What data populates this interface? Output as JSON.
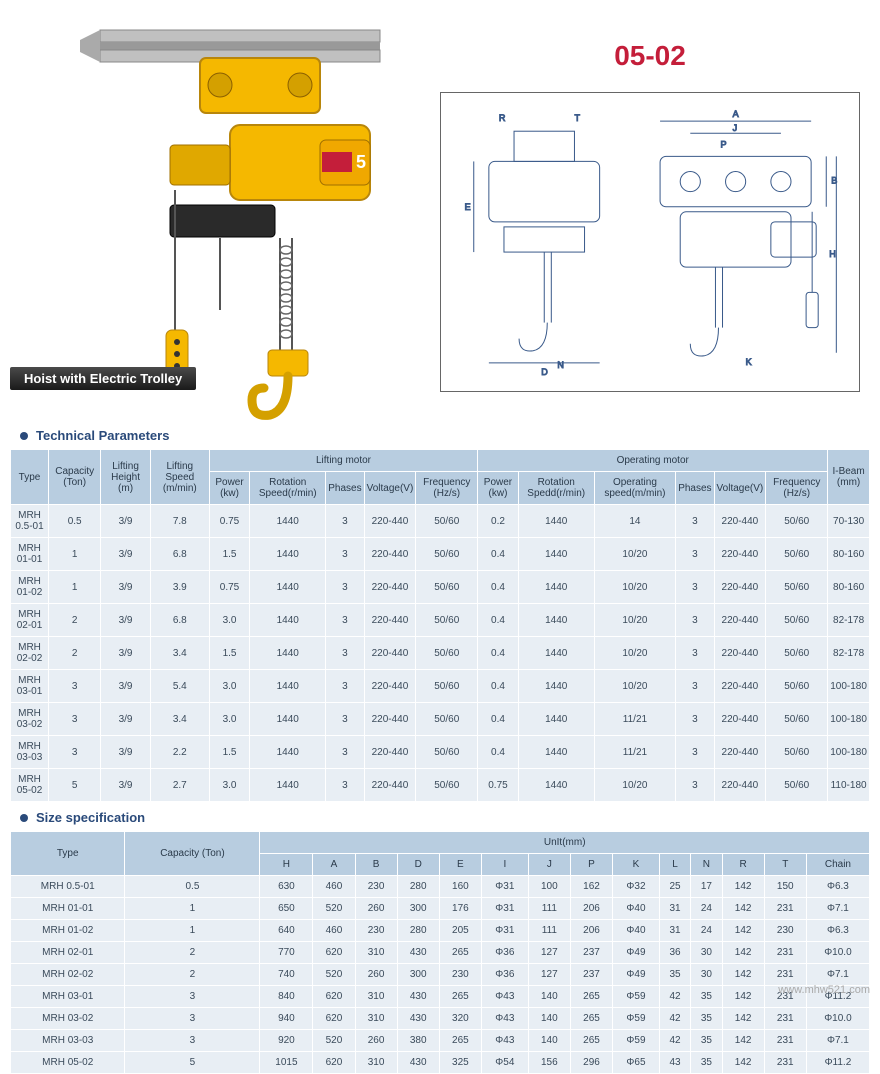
{
  "product": {
    "code": "05-02",
    "label": "Hoist with Electric Trolley"
  },
  "sections": {
    "tech": "Technical Parameters",
    "size": "Size specification"
  },
  "colors": {
    "header_bg": "#b8cde0",
    "cell_bg": "#e8eef4",
    "accent": "#2a4a7a",
    "code_color": "#c41e3a"
  },
  "tech_table": {
    "group_headers": [
      "Type",
      "Capacity (Ton)",
      "Lifting Height (m)",
      "Lifting Speed (m/min)",
      "Lifting motor",
      "Operating motor",
      "I-Beam (mm)"
    ],
    "sub_headers_lift": [
      "Power (kw)",
      "Rotation Speed(r/min)",
      "Phases",
      "Voltage(V)",
      "Frequency (Hz/s)"
    ],
    "sub_headers_op": [
      "Power (kw)",
      "Rotation Spedd(r/min)",
      "Operating speed(m/min)",
      "Phases",
      "Voltage(V)",
      "Frequency (Hz/s)"
    ],
    "rows": [
      [
        "MRH 0.5-01",
        "0.5",
        "3/9",
        "7.8",
        "0.75",
        "1440",
        "3",
        "220-440",
        "50/60",
        "0.2",
        "1440",
        "14",
        "3",
        "220-440",
        "50/60",
        "70-130"
      ],
      [
        "MRH 01-01",
        "1",
        "3/9",
        "6.8",
        "1.5",
        "1440",
        "3",
        "220-440",
        "50/60",
        "0.4",
        "1440",
        "10/20",
        "3",
        "220-440",
        "50/60",
        "80-160"
      ],
      [
        "MRH 01-02",
        "1",
        "3/9",
        "3.9",
        "0.75",
        "1440",
        "3",
        "220-440",
        "50/60",
        "0.4",
        "1440",
        "10/20",
        "3",
        "220-440",
        "50/60",
        "80-160"
      ],
      [
        "MRH 02-01",
        "2",
        "3/9",
        "6.8",
        "3.0",
        "1440",
        "3",
        "220-440",
        "50/60",
        "0.4",
        "1440",
        "10/20",
        "3",
        "220-440",
        "50/60",
        "82-178"
      ],
      [
        "MRH 02-02",
        "2",
        "3/9",
        "3.4",
        "1.5",
        "1440",
        "3",
        "220-440",
        "50/60",
        "0.4",
        "1440",
        "10/20",
        "3",
        "220-440",
        "50/60",
        "82-178"
      ],
      [
        "MRH 03-01",
        "3",
        "3/9",
        "5.4",
        "3.0",
        "1440",
        "3",
        "220-440",
        "50/60",
        "0.4",
        "1440",
        "10/20",
        "3",
        "220-440",
        "50/60",
        "100-180"
      ],
      [
        "MRH 03-02",
        "3",
        "3/9",
        "3.4",
        "3.0",
        "1440",
        "3",
        "220-440",
        "50/60",
        "0.4",
        "1440",
        "11/21",
        "3",
        "220-440",
        "50/60",
        "100-180"
      ],
      [
        "MRH 03-03",
        "3",
        "3/9",
        "2.2",
        "1.5",
        "1440",
        "3",
        "220-440",
        "50/60",
        "0.4",
        "1440",
        "11/21",
        "3",
        "220-440",
        "50/60",
        "100-180"
      ],
      [
        "MRH 05-02",
        "5",
        "3/9",
        "2.7",
        "3.0",
        "1440",
        "3",
        "220-440",
        "50/60",
        "0.75",
        "1440",
        "10/20",
        "3",
        "220-440",
        "50/60",
        "110-180"
      ]
    ]
  },
  "size_table": {
    "group_headers": [
      "Type",
      "Capacity (Ton)",
      "UnIt(mm)"
    ],
    "sub_headers": [
      "H",
      "A",
      "B",
      "D",
      "E",
      "I",
      "J",
      "P",
      "K",
      "L",
      "N",
      "R",
      "T",
      "Chain"
    ],
    "rows": [
      [
        "MRH 0.5-01",
        "0.5",
        "630",
        "460",
        "230",
        "280",
        "160",
        "Φ31",
        "100",
        "162",
        "Φ32",
        "25",
        "17",
        "142",
        "150",
        "Φ6.3"
      ],
      [
        "MRH 01-01",
        "1",
        "650",
        "520",
        "260",
        "300",
        "176",
        "Φ31",
        "111",
        "206",
        "Φ40",
        "31",
        "24",
        "142",
        "231",
        "Φ7.1"
      ],
      [
        "MRH 01-02",
        "1",
        "640",
        "460",
        "230",
        "280",
        "205",
        "Φ31",
        "111",
        "206",
        "Φ40",
        "31",
        "24",
        "142",
        "230",
        "Φ6.3"
      ],
      [
        "MRH 02-01",
        "2",
        "770",
        "620",
        "310",
        "430",
        "265",
        "Φ36",
        "127",
        "237",
        "Φ49",
        "36",
        "30",
        "142",
        "231",
        "Φ10.0"
      ],
      [
        "MRH 02-02",
        "2",
        "740",
        "520",
        "260",
        "300",
        "230",
        "Φ36",
        "127",
        "237",
        "Φ49",
        "35",
        "30",
        "142",
        "231",
        "Φ7.1"
      ],
      [
        "MRH 03-01",
        "3",
        "840",
        "620",
        "310",
        "430",
        "265",
        "Φ43",
        "140",
        "265",
        "Φ59",
        "42",
        "35",
        "142",
        "231",
        "Φ11.2"
      ],
      [
        "MRH 03-02",
        "3",
        "940",
        "620",
        "310",
        "430",
        "320",
        "Φ43",
        "140",
        "265",
        "Φ59",
        "42",
        "35",
        "142",
        "231",
        "Φ10.0"
      ],
      [
        "MRH 03-03",
        "3",
        "920",
        "520",
        "260",
        "380",
        "265",
        "Φ43",
        "140",
        "265",
        "Φ59",
        "42",
        "35",
        "142",
        "231",
        "Φ7.1"
      ],
      [
        "MRH 05-02",
        "5",
        "1015",
        "620",
        "310",
        "430",
        "325",
        "Φ54",
        "156",
        "296",
        "Φ65",
        "43",
        "35",
        "142",
        "231",
        "Φ11.2"
      ]
    ]
  },
  "diagram_letters": [
    "R",
    "T",
    "A",
    "J",
    "P",
    "B",
    "E",
    "H",
    "N",
    "D",
    "K"
  ],
  "watermark": "www.mhw521.com"
}
